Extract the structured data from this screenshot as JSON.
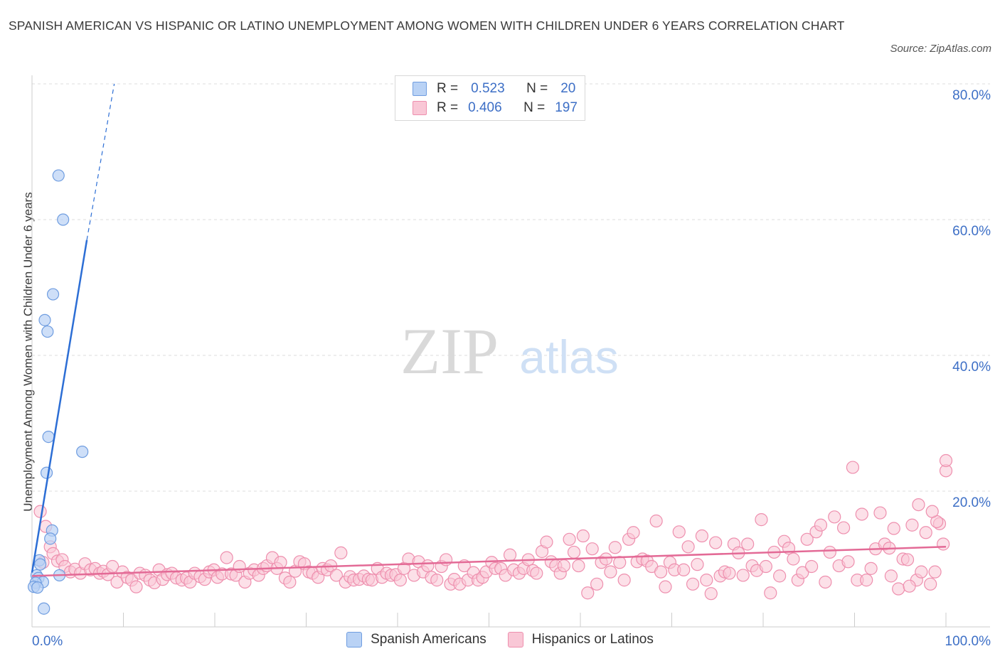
{
  "title": "SPANISH AMERICAN VS HISPANIC OR LATINO UNEMPLOYMENT AMONG WOMEN WITH CHILDREN UNDER 6 YEARS CORRELATION CHART",
  "source": "Source: ZipAtlas.com",
  "watermark": {
    "zip": "ZIP",
    "atlas": "atlas"
  },
  "legend": {
    "r_label": "R =",
    "n_label": "N =",
    "series_a": {
      "r": "0.523",
      "n": "20"
    },
    "series_b": {
      "r": "0.406",
      "n": "197"
    }
  },
  "colors": {
    "blue_fill": "#b9d2f5",
    "blue_stroke": "#6f9de0",
    "blue_line": "#2c6ed5",
    "pink_fill": "#f9c7d6",
    "pink_stroke": "#ee8fae",
    "pink_line": "#e36a96",
    "axis_text": "#3d6fc6",
    "grid": "#dddddd"
  },
  "chart_data": {
    "type": "scatter",
    "title": "SPANISH AMERICAN VS HISPANIC OR LATINO UNEMPLOYMENT AMONG WOMEN WITH CHILDREN UNDER 6 YEARS CORRELATION CHART",
    "xlabel": "",
    "ylabel": "Unemployment Among Women with Children Under 6 years",
    "xlim": [
      0,
      100
    ],
    "ylim": [
      0,
      80
    ],
    "x_tick_labels": [
      "0.0%",
      "100.0%"
    ],
    "y_ticks": [
      20,
      40,
      60,
      80
    ],
    "y_tick_labels": [
      "20.0%",
      "40.0%",
      "60.0%",
      "80.0%"
    ],
    "grid": true,
    "legend_position": "top-center",
    "series": [
      {
        "name": "Spanish Americans",
        "color": "blue",
        "r": 0.523,
        "n": 20,
        "trend": {
          "x0": 0.0,
          "y0": 8.0,
          "x1": 6.0,
          "y1": 57.0,
          "dash_x1": 9.0,
          "dash_y1": 80.0
        },
        "points": [
          [
            2.9,
            66.5
          ],
          [
            3.4,
            60.0
          ],
          [
            2.3,
            49.0
          ],
          [
            1.4,
            45.2
          ],
          [
            1.7,
            43.5
          ],
          [
            1.8,
            28.0
          ],
          [
            5.5,
            25.8
          ],
          [
            1.6,
            22.7
          ],
          [
            2.2,
            14.2
          ],
          [
            2.0,
            13.0
          ],
          [
            0.8,
            9.8
          ],
          [
            0.9,
            9.2
          ],
          [
            0.5,
            7.6
          ],
          [
            3.0,
            7.6
          ],
          [
            0.7,
            7.2
          ],
          [
            1.2,
            6.6
          ],
          [
            0.4,
            6.5
          ],
          [
            0.2,
            5.9
          ],
          [
            0.6,
            5.8
          ],
          [
            1.3,
            2.7
          ]
        ]
      },
      {
        "name": "Hispanics or Latinos",
        "color": "pink",
        "r": 0.406,
        "n": 197,
        "trend": {
          "x0": 0.0,
          "y0": 7.5,
          "x1": 100.0,
          "y1": 11.8
        },
        "points": [
          [
            0.9,
            17.0
          ],
          [
            1.5,
            14.8
          ],
          [
            2.0,
            11.8
          ],
          [
            2.3,
            10.8
          ],
          [
            2.8,
            9.7
          ],
          [
            3.3,
            9.9
          ],
          [
            3.6,
            8.9
          ],
          [
            4.2,
            8.1
          ],
          [
            4.7,
            8.5
          ],
          [
            5.3,
            7.9
          ],
          [
            5.8,
            9.3
          ],
          [
            6.4,
            8.4
          ],
          [
            6.9,
            8.6
          ],
          [
            7.4,
            7.9
          ],
          [
            7.8,
            8.2
          ],
          [
            8.3,
            7.7
          ],
          [
            8.8,
            8.9
          ],
          [
            9.3,
            6.6
          ],
          [
            9.9,
            8.1
          ],
          [
            10.4,
            7.3
          ],
          [
            10.9,
            6.9
          ],
          [
            11.4,
            5.9
          ],
          [
            11.8,
            7.9
          ],
          [
            12.4,
            7.6
          ],
          [
            12.9,
            6.9
          ],
          [
            13.4,
            6.5
          ],
          [
            13.9,
            8.4
          ],
          [
            14.3,
            7.0
          ],
          [
            14.8,
            7.7
          ],
          [
            15.3,
            7.9
          ],
          [
            15.8,
            7.2
          ],
          [
            16.4,
            6.9
          ],
          [
            16.9,
            7.2
          ],
          [
            17.3,
            6.6
          ],
          [
            17.8,
            7.9
          ],
          [
            18.4,
            7.4
          ],
          [
            18.9,
            7.0
          ],
          [
            19.4,
            8.1
          ],
          [
            19.9,
            8.4
          ],
          [
            20.3,
            7.3
          ],
          [
            20.8,
            7.8
          ],
          [
            21.3,
            10.2
          ],
          [
            21.8,
            7.8
          ],
          [
            22.3,
            7.6
          ],
          [
            22.7,
            8.9
          ],
          [
            23.3,
            6.6
          ],
          [
            23.8,
            7.9
          ],
          [
            24.3,
            8.4
          ],
          [
            24.8,
            7.6
          ],
          [
            25.3,
            8.6
          ],
          [
            25.7,
            9.0
          ],
          [
            26.3,
            10.2
          ],
          [
            26.8,
            8.6
          ],
          [
            27.2,
            9.5
          ],
          [
            27.7,
            7.2
          ],
          [
            28.2,
            6.6
          ],
          [
            28.8,
            8.2
          ],
          [
            29.3,
            9.6
          ],
          [
            29.8,
            9.3
          ],
          [
            30.3,
            8.1
          ],
          [
            30.7,
            7.9
          ],
          [
            31.3,
            7.3
          ],
          [
            31.8,
            8.6
          ],
          [
            32.3,
            8.4
          ],
          [
            32.7,
            9.0
          ],
          [
            33.3,
            7.6
          ],
          [
            33.8,
            10.9
          ],
          [
            34.3,
            6.6
          ],
          [
            34.8,
            7.4
          ],
          [
            35.2,
            6.9
          ],
          [
            35.8,
            7.0
          ],
          [
            36.3,
            7.5
          ],
          [
            36.8,
            7.0
          ],
          [
            37.2,
            6.9
          ],
          [
            37.8,
            8.6
          ],
          [
            38.3,
            7.3
          ],
          [
            38.8,
            7.9
          ],
          [
            39.3,
            7.6
          ],
          [
            39.8,
            7.7
          ],
          [
            40.3,
            6.9
          ],
          [
            40.7,
            8.6
          ],
          [
            41.2,
            10.0
          ],
          [
            41.8,
            7.6
          ],
          [
            42.3,
            9.6
          ],
          [
            42.8,
            8.1
          ],
          [
            43.3,
            9.0
          ],
          [
            43.7,
            7.3
          ],
          [
            44.3,
            6.9
          ],
          [
            44.8,
            8.9
          ],
          [
            45.3,
            9.9
          ],
          [
            45.8,
            6.3
          ],
          [
            46.2,
            7.0
          ],
          [
            46.8,
            6.3
          ],
          [
            47.3,
            9.0
          ],
          [
            47.7,
            6.9
          ],
          [
            48.3,
            8.0
          ],
          [
            48.8,
            6.9
          ],
          [
            49.3,
            7.3
          ],
          [
            49.7,
            8.1
          ],
          [
            50.3,
            9.5
          ],
          [
            50.7,
            8.6
          ],
          [
            51.3,
            8.6
          ],
          [
            51.8,
            7.6
          ],
          [
            52.3,
            10.6
          ],
          [
            52.7,
            8.4
          ],
          [
            53.3,
            7.9
          ],
          [
            53.8,
            8.6
          ],
          [
            54.3,
            9.9
          ],
          [
            54.8,
            8.3
          ],
          [
            55.2,
            7.9
          ],
          [
            55.8,
            11.1
          ],
          [
            56.3,
            12.5
          ],
          [
            56.8,
            9.6
          ],
          [
            57.3,
            9.0
          ],
          [
            57.8,
            7.9
          ],
          [
            58.2,
            9.0
          ],
          [
            58.8,
            12.9
          ],
          [
            59.3,
            11.0
          ],
          [
            59.8,
            9.0
          ],
          [
            60.3,
            13.4
          ],
          [
            60.8,
            5.0
          ],
          [
            61.3,
            11.5
          ],
          [
            61.8,
            6.3
          ],
          [
            62.3,
            9.5
          ],
          [
            62.8,
            10.0
          ],
          [
            63.3,
            8.1
          ],
          [
            63.8,
            11.7
          ],
          [
            64.3,
            9.5
          ],
          [
            64.8,
            6.9
          ],
          [
            65.3,
            12.9
          ],
          [
            65.8,
            13.9
          ],
          [
            66.2,
            9.6
          ],
          [
            66.8,
            10.0
          ],
          [
            67.3,
            9.7
          ],
          [
            67.8,
            8.9
          ],
          [
            68.3,
            15.6
          ],
          [
            68.8,
            8.1
          ],
          [
            69.3,
            5.9
          ],
          [
            69.8,
            9.5
          ],
          [
            70.3,
            8.4
          ],
          [
            70.8,
            14.0
          ],
          [
            71.3,
            8.4
          ],
          [
            71.8,
            11.8
          ],
          [
            72.3,
            6.3
          ],
          [
            72.8,
            9.2
          ],
          [
            73.3,
            13.4
          ],
          [
            73.8,
            6.9
          ],
          [
            74.3,
            4.9
          ],
          [
            74.8,
            12.4
          ],
          [
            75.3,
            7.5
          ],
          [
            75.8,
            8.1
          ],
          [
            76.3,
            7.9
          ],
          [
            76.8,
            12.2
          ],
          [
            77.3,
            10.9
          ],
          [
            77.8,
            7.6
          ],
          [
            78.3,
            12.2
          ],
          [
            78.8,
            9.0
          ],
          [
            79.3,
            8.3
          ],
          [
            79.8,
            15.8
          ],
          [
            80.3,
            8.9
          ],
          [
            80.8,
            5.0
          ],
          [
            81.2,
            11.0
          ],
          [
            81.8,
            7.5
          ],
          [
            82.3,
            12.6
          ],
          [
            82.8,
            11.6
          ],
          [
            83.3,
            10.0
          ],
          [
            83.8,
            6.9
          ],
          [
            84.3,
            8.0
          ],
          [
            84.8,
            12.9
          ],
          [
            85.3,
            8.9
          ],
          [
            85.8,
            14.0
          ],
          [
            86.3,
            15.0
          ],
          [
            86.8,
            6.6
          ],
          [
            87.3,
            11.0
          ],
          [
            87.8,
            16.2
          ],
          [
            88.3,
            9.0
          ],
          [
            88.8,
            14.6
          ],
          [
            89.3,
            9.6
          ],
          [
            89.8,
            23.5
          ],
          [
            90.3,
            6.9
          ],
          [
            90.8,
            16.6
          ],
          [
            91.3,
            6.9
          ],
          [
            91.8,
            8.6
          ],
          [
            92.3,
            11.5
          ],
          [
            92.8,
            16.8
          ],
          [
            93.3,
            12.2
          ],
          [
            93.8,
            11.6
          ],
          [
            94.3,
            14.5
          ],
          [
            94.8,
            5.6
          ],
          [
            95.3,
            10.0
          ],
          [
            95.8,
            9.9
          ],
          [
            96.3,
            15.0
          ],
          [
            96.8,
            6.9
          ],
          [
            97.3,
            8.1
          ],
          [
            97.8,
            13.9
          ],
          [
            98.3,
            6.3
          ],
          [
            98.8,
            8.1
          ],
          [
            99.3,
            15.2
          ],
          [
            99.7,
            12.2
          ],
          [
            100.0,
            23.0
          ],
          [
            100.0,
            24.5
          ],
          [
            99.0,
            15.5
          ],
          [
            98.5,
            17.0
          ],
          [
            97.0,
            18.0
          ],
          [
            96.0,
            6.0
          ],
          [
            94.0,
            7.5
          ],
          [
            1.2,
            9.5
          ]
        ]
      }
    ]
  },
  "bottom_legend": {
    "item_a": "Spanish Americans",
    "item_b": "Hispanics or Latinos"
  }
}
